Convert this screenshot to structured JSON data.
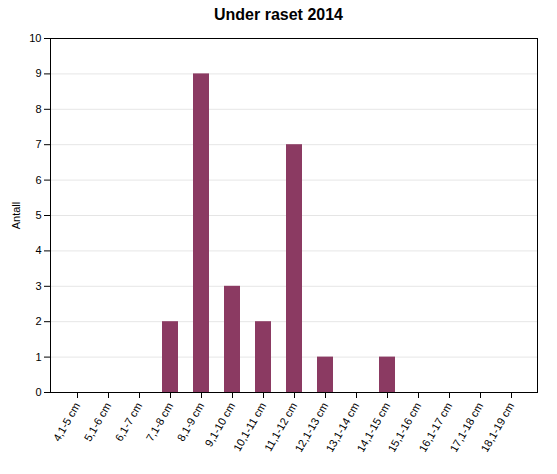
{
  "chart_data": {
    "type": "bar",
    "title": "Under raset 2014",
    "ylabel": "Antall",
    "categories": [
      "4,1-5 cm",
      "5,1-6 cm",
      "6,1-7 cm",
      "7,1-8 cm",
      "8,1-9 cm",
      "9,1-10 cm",
      "10,1-11 cm",
      "11,1-12 cm",
      "12,1-13 cm",
      "13,1-14 cm",
      "14,1-15 cm",
      "15,1-16 cm",
      "16,1-17 cm",
      "17,1-18 cm",
      "18,1-19 cm"
    ],
    "values": [
      0,
      0,
      0,
      2,
      9,
      3,
      2,
      7,
      1,
      0,
      1,
      0,
      0,
      0,
      0
    ],
    "color": "#8B3A62",
    "ylim": [
      0,
      10
    ],
    "yticks": [
      0,
      1,
      2,
      3,
      4,
      5,
      6,
      7,
      8,
      9,
      10
    ],
    "grid": true
  }
}
